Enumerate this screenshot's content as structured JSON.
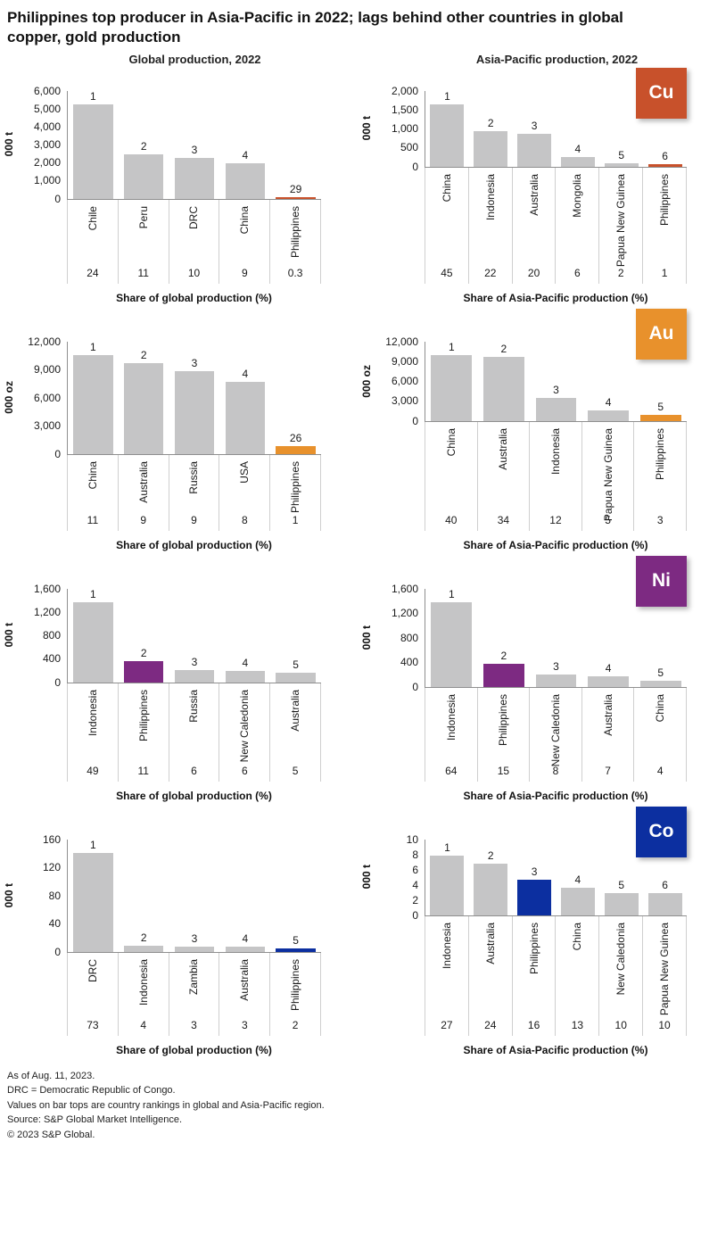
{
  "title": "Philippines top producer in Asia-Pacific in 2022; lags behind other countries in global copper, gold production",
  "column_headers": {
    "left": "Global production, 2022",
    "right": "Asia-Pacific production, 2022"
  },
  "colors": {
    "bar_gray": "#c5c5c6",
    "cu": "#c8512b",
    "au": "#e8912c",
    "ni": "#7d2a82",
    "co": "#0c2fa0",
    "axis_line": "#8f8f8f",
    "separator_line": "#cfcfcf"
  },
  "footnotes": [
    "As of Aug. 11, 2023.",
    "DRC = Democratic Republic of Congo.",
    "Values on bar tops are country rankings in global and Asia-Pacific region.",
    "Source: S&P Global Market Intelligence.",
    "© 2023 S&P Global."
  ],
  "chart_data": [
    {
      "id": "cu-global",
      "type": "bar",
      "metal": "Cu",
      "badge": null,
      "unit": "000 t",
      "xlabel": "Share of global production (%)",
      "ylim": [
        0,
        6000
      ],
      "ytick_values": [
        0,
        1000,
        2000,
        3000,
        4000,
        5000,
        6000
      ],
      "ytick_labels": [
        "0",
        "1,000",
        "2,000",
        "3,000",
        "4,000",
        "5,000",
        "6,000"
      ],
      "categories": [
        "Chile",
        "Peru",
        "DRC",
        "China",
        "Philippines"
      ],
      "values": [
        5350,
        2450,
        2250,
        1950,
        70
      ],
      "ranks": [
        "1",
        "2",
        "3",
        "4",
        "29"
      ],
      "shares": [
        "24",
        "11",
        "10",
        "9",
        "0.3"
      ],
      "highlight_index": 4,
      "highlight_color_key": "cu"
    },
    {
      "id": "cu-asia-pacific",
      "type": "bar",
      "metal": "Cu",
      "badge": "Cu",
      "unit": "000 t",
      "xlabel": "Share of Asia-Pacific production (%)",
      "ylim": [
        0,
        2000
      ],
      "ytick_values": [
        0,
        500,
        1000,
        1500,
        2000
      ],
      "ytick_labels": [
        "0",
        "500",
        "1,000",
        "1,500",
        "2,000"
      ],
      "categories": [
        "China",
        "Indonesia",
        "Australia",
        "Mongolia",
        "Papua New Guinea",
        "Philippines"
      ],
      "values": [
        1900,
        930,
        850,
        250,
        80,
        50
      ],
      "ranks": [
        "1",
        "2",
        "3",
        "4",
        "5",
        "6"
      ],
      "shares": [
        "45",
        "22",
        "20",
        "6",
        "2",
        "1"
      ],
      "highlight_index": 5,
      "highlight_color_key": "cu"
    },
    {
      "id": "au-global",
      "type": "bar",
      "metal": "Au",
      "badge": null,
      "unit": "000 oz",
      "xlabel": "Share of global production (%)",
      "ylim": [
        0,
        12000
      ],
      "ytick_values": [
        0,
        3000,
        6000,
        9000,
        12000
      ],
      "ytick_labels": [
        "0",
        "3,000",
        "6,000",
        "9,000",
        "12,000"
      ],
      "categories": [
        "China",
        "Australia",
        "Russia",
        "USA",
        "Philippines"
      ],
      "values": [
        11300,
        9650,
        8850,
        7700,
        850
      ],
      "ranks": [
        "1",
        "2",
        "3",
        "4",
        "26"
      ],
      "shares": [
        "11",
        "9",
        "9",
        "8",
        "1"
      ],
      "highlight_index": 4,
      "highlight_color_key": "au"
    },
    {
      "id": "au-asia-pacific",
      "type": "bar",
      "metal": "Au",
      "badge": "Au",
      "unit": "000 oz",
      "xlabel": "Share of Asia-Pacific production (%)",
      "ylim": [
        0,
        12000
      ],
      "ytick_values": [
        0,
        3000,
        6000,
        9000,
        12000
      ],
      "ytick_labels": [
        "0",
        "3,000",
        "6,000",
        "9,000",
        "12,000"
      ],
      "categories": [
        "China",
        "Australia",
        "Indonesia",
        "Papua New Guinea",
        "Philippines"
      ],
      "values": [
        11300,
        9650,
        3400,
        1500,
        850
      ],
      "ranks": [
        "1",
        "2",
        "3",
        "4",
        "5"
      ],
      "shares": [
        "40",
        "34",
        "12",
        "5",
        "3"
      ],
      "highlight_index": 4,
      "highlight_color_key": "au"
    },
    {
      "id": "ni-global",
      "type": "bar",
      "metal": "Ni",
      "badge": null,
      "unit": "000 t",
      "xlabel": "Share of global production (%)",
      "ylim": [
        0,
        1600
      ],
      "ytick_values": [
        0,
        400,
        800,
        1200,
        1600
      ],
      "ytick_labels": [
        "0",
        "400",
        "800",
        "1,200",
        "1,600"
      ],
      "categories": [
        "Indonesia",
        "Philippines",
        "Russia",
        "New Caledonia",
        "Australia"
      ],
      "values": [
        1580,
        360,
        200,
        195,
        160
      ],
      "ranks": [
        "1",
        "2",
        "3",
        "4",
        "5"
      ],
      "shares": [
        "49",
        "11",
        "6",
        "6",
        "5"
      ],
      "highlight_index": 1,
      "highlight_color_key": "ni"
    },
    {
      "id": "ni-asia-pacific",
      "type": "bar",
      "metal": "Ni",
      "badge": "Ni",
      "unit": "000 t",
      "xlabel": "Share of Asia-Pacific production (%)",
      "ylim": [
        0,
        1600
      ],
      "ytick_values": [
        0,
        400,
        800,
        1200,
        1600
      ],
      "ytick_labels": [
        "0",
        "400",
        "800",
        "1,200",
        "1,600"
      ],
      "categories": [
        "Indonesia",
        "Philippines",
        "New Caledonia",
        "Australia",
        "China"
      ],
      "values": [
        1580,
        365,
        200,
        165,
        100
      ],
      "ranks": [
        "1",
        "2",
        "3",
        "4",
        "5"
      ],
      "shares": [
        "64",
        "15",
        "8",
        "7",
        "4"
      ],
      "highlight_index": 1,
      "highlight_color_key": "ni"
    },
    {
      "id": "co-global",
      "type": "bar",
      "metal": "Co",
      "badge": null,
      "unit": "000 t",
      "xlabel": "Share of global production (%)",
      "ylim": [
        0,
        160
      ],
      "ytick_values": [
        0,
        40,
        80,
        120,
        160
      ],
      "ytick_labels": [
        "0",
        "40",
        "80",
        "120",
        "160"
      ],
      "categories": [
        "DRC",
        "Indonesia",
        "Zambia",
        "Australia",
        "Philippines"
      ],
      "values": [
        153,
        8,
        7,
        7,
        4.5
      ],
      "ranks": [
        "1",
        "2",
        "3",
        "4",
        "5"
      ],
      "shares": [
        "73",
        "4",
        "3",
        "3",
        "2"
      ],
      "highlight_index": 4,
      "highlight_color_key": "co"
    },
    {
      "id": "co-asia-pacific",
      "type": "bar",
      "metal": "Co",
      "badge": "Co",
      "unit": "000 t",
      "xlabel": "Share of Asia-Pacific production (%)",
      "ylim": [
        0,
        10
      ],
      "ytick_values": [
        0,
        2,
        4,
        6,
        8,
        10
      ],
      "ytick_labels": [
        "0",
        "2",
        "4",
        "6",
        "8",
        "10"
      ],
      "categories": [
        "Indonesia",
        "Australia",
        "Philippines",
        "China",
        "New Caledonia",
        "Papua New Guinea"
      ],
      "values": [
        7.8,
        6.8,
        4.6,
        3.6,
        2.9,
        2.85
      ],
      "ranks": [
        "1",
        "2",
        "3",
        "4",
        "5",
        "6"
      ],
      "shares": [
        "27",
        "24",
        "16",
        "13",
        "10",
        "10"
      ],
      "highlight_index": 2,
      "highlight_color_key": "co"
    }
  ]
}
